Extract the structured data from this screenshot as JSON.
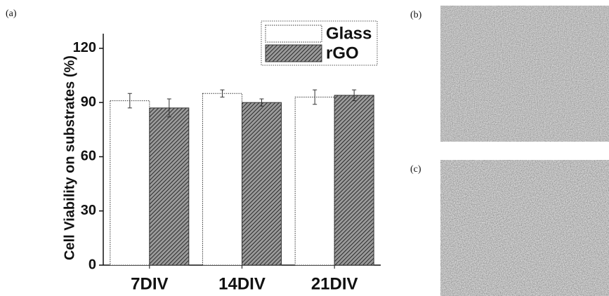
{
  "panels": [
    "(a)",
    "(b)",
    "(c)"
  ],
  "chart_data": {
    "type": "bar",
    "y_label": "Cell Viability on substrates (%)",
    "categories": [
      "7DIV",
      "14DIV",
      "21DIV"
    ],
    "series": [
      {
        "name": "Glass",
        "color": "#ffffff",
        "hatch": false,
        "values": [
          91,
          95,
          93
        ],
        "errors": [
          4,
          2,
          4
        ]
      },
      {
        "name": "rGO",
        "color": "#5a5a5a",
        "hatch": true,
        "values": [
          87,
          90,
          94
        ],
        "errors": [
          5,
          2,
          3
        ]
      }
    ],
    "ylim": [
      0,
      125
    ],
    "yticks": [
      0,
      30,
      60,
      90,
      120
    ],
    "legend": "top-right"
  }
}
